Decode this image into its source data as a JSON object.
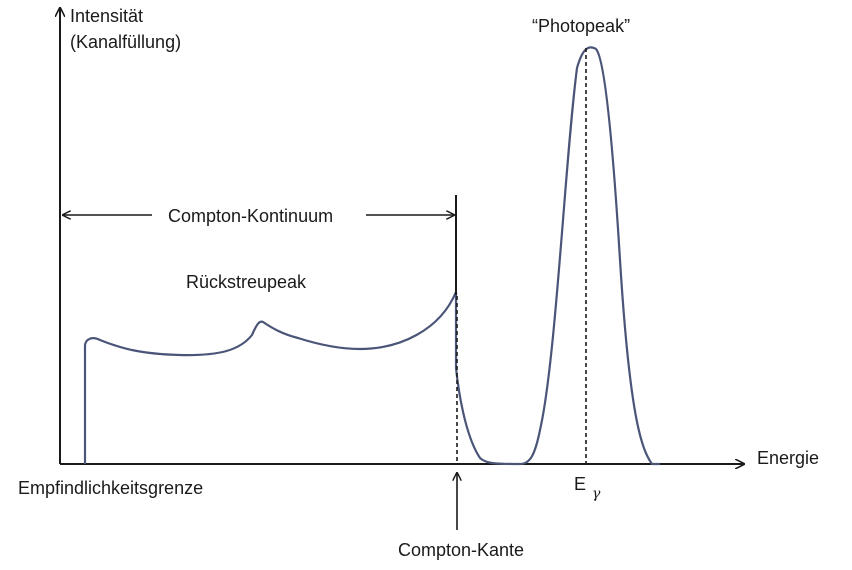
{
  "axes": {
    "y_label_line1": "Intensität",
    "y_label_line2": "(Kanalfüllung)",
    "x_label": "Energie"
  },
  "labels": {
    "photopeak": "“Photopeak”",
    "compton_continuum": "Compton-Kontinuum",
    "backscatter_peak": "Rückstreupeak",
    "sensitivity_limit": "Empfindlichkeitsgrenze",
    "compton_edge": "Compton-Kante",
    "gamma_energy_symbol": "E",
    "gamma_energy_subscript": "γ"
  },
  "colors": {
    "curve": "#4a5578",
    "axes": "#1a1a1a",
    "background": "#ffffff"
  }
}
